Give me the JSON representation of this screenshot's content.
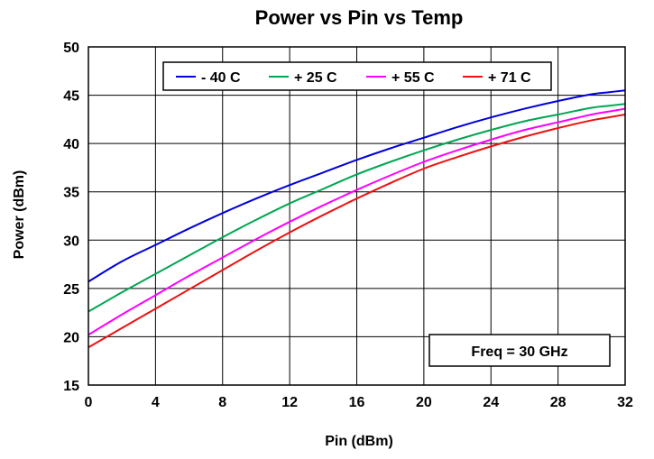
{
  "chart_data": {
    "type": "line",
    "title": "Power vs Pin vs Temp",
    "xlabel": "Pin (dBm)",
    "ylabel": "Power (dBm)",
    "xlim": [
      0,
      32
    ],
    "ylim": [
      15,
      50
    ],
    "xticks": [
      0,
      4,
      8,
      12,
      16,
      20,
      24,
      28,
      32
    ],
    "yticks": [
      15,
      20,
      25,
      30,
      35,
      40,
      45,
      50
    ],
    "grid": true,
    "legend_position": "top",
    "annotation": "Freq = 30 GHz",
    "x": [
      0,
      2,
      4,
      6,
      8,
      10,
      12,
      14,
      16,
      18,
      20,
      22,
      24,
      26,
      28,
      30,
      31,
      32
    ],
    "series": [
      {
        "name": "- 40 C",
        "color": "#0000dd",
        "values": [
          25.7,
          27.8,
          29.5,
          31.2,
          32.8,
          34.3,
          35.7,
          37.0,
          38.3,
          39.5,
          40.6,
          41.7,
          42.7,
          43.6,
          44.4,
          45.1,
          45.3,
          45.5
        ]
      },
      {
        "name": "+ 25 C",
        "color": "#00a651",
        "values": [
          22.6,
          24.6,
          26.5,
          28.4,
          30.3,
          32.1,
          33.8,
          35.3,
          36.8,
          38.1,
          39.3,
          40.4,
          41.4,
          42.3,
          43.0,
          43.7,
          43.9,
          44.1
        ]
      },
      {
        "name": "+ 55 C",
        "color": "#ff00ff",
        "values": [
          20.2,
          22.3,
          24.3,
          26.3,
          28.2,
          30.1,
          31.9,
          33.6,
          35.2,
          36.7,
          38.1,
          39.3,
          40.4,
          41.4,
          42.2,
          43.0,
          43.3,
          43.6
        ]
      },
      {
        "name": "+ 71 C",
        "color": "#ee1111",
        "values": [
          18.9,
          20.9,
          22.9,
          24.9,
          26.9,
          28.9,
          30.8,
          32.6,
          34.3,
          35.9,
          37.4,
          38.6,
          39.7,
          40.7,
          41.6,
          42.4,
          42.7,
          43.0
        ]
      }
    ]
  }
}
